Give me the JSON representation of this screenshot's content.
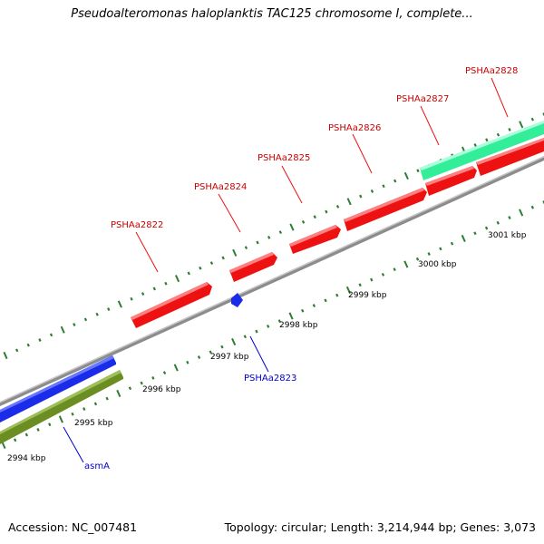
{
  "title": "Pseudoalteromonas haloplanktis TAC125 chromosome I, complete...",
  "footer": {
    "accession": "Accession: NC_007481",
    "summary": "Topology: circular; Length: 3,214,944 bp; Genes: 3,073"
  },
  "scale_labels": [
    "2994 kbp",
    "2995 kbp",
    "2996 kbp",
    "2997 kbp",
    "2998 kbp",
    "2999 kbp",
    "3000 kbp",
    "3001 kbp"
  ],
  "gene_labels": [
    {
      "id": "PSHAa2822",
      "color": "#cc0000"
    },
    {
      "id": "PSHAa2823",
      "color": "#0000cc"
    },
    {
      "id": "PSHAa2824",
      "color": "#cc0000"
    },
    {
      "id": "PSHAa2825",
      "color": "#cc0000"
    },
    {
      "id": "PSHAa2826",
      "color": "#cc0000"
    },
    {
      "id": "PSHAa2827",
      "color": "#cc0000"
    },
    {
      "id": "PSHAa2828",
      "color": "#cc0000"
    },
    {
      "id": "asmA",
      "color": "#0000cc"
    }
  ],
  "colors": {
    "backbone": "#888888",
    "cds_red": "#ee1111",
    "cds_blue": "#1122ee",
    "cds_olive": "#6b8e23",
    "cds_teal": "#33ee99",
    "ticks": "#2e7d32"
  }
}
